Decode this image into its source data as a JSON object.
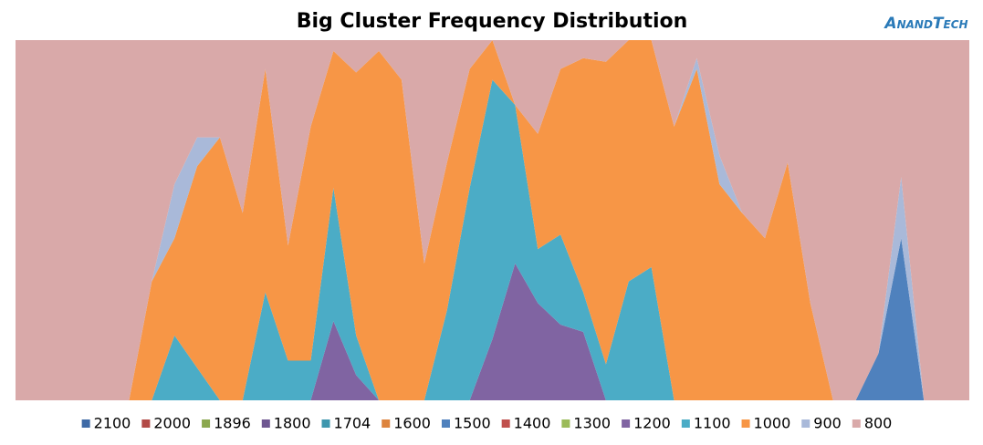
{
  "chart_data": {
    "type": "stacked_area_percent",
    "title": "Big Cluster Frequency Distribution",
    "logo": "AnandTech",
    "ylim": [
      0,
      100
    ],
    "categories": [
      null,
      null,
      null,
      null,
      null,
      null,
      null,
      null,
      null,
      null,
      null,
      null,
      null,
      null,
      null,
      null,
      null,
      null,
      null,
      null,
      null,
      null,
      null,
      null,
      null,
      null,
      null,
      null,
      null,
      null,
      null,
      null,
      null,
      null,
      null,
      null,
      null,
      null,
      null,
      null,
      null,
      null,
      null
    ],
    "series": [
      {
        "name": "2100",
        "color": "#3f6aa6",
        "values": [
          0,
          0,
          0,
          0,
          0,
          0,
          0,
          0,
          0,
          0,
          0,
          0,
          0,
          0,
          0,
          0,
          0,
          0,
          0,
          0,
          0,
          0,
          0,
          0,
          0,
          0,
          0,
          0,
          0,
          0,
          0,
          0,
          0,
          0,
          0,
          0,
          0,
          0,
          0,
          0,
          0,
          0,
          0
        ]
      },
      {
        "name": "2000",
        "color": "#b24a47",
        "values": [
          0,
          0,
          0,
          0,
          0,
          0,
          0,
          0,
          0,
          0,
          0,
          0,
          0,
          0,
          0,
          0,
          0,
          0,
          0,
          0,
          0,
          0,
          0,
          0,
          0,
          0,
          0,
          0,
          0,
          0,
          0,
          0,
          0,
          0,
          0,
          0,
          0,
          0,
          0,
          0,
          0,
          0,
          0
        ]
      },
      {
        "name": "1896",
        "color": "#8ba84f",
        "values": [
          0,
          0,
          0,
          0,
          0,
          0,
          0,
          0,
          0,
          0,
          0,
          0,
          0,
          0,
          0,
          0,
          0,
          0,
          0,
          0,
          0,
          0,
          0,
          0,
          0,
          0,
          0,
          0,
          0,
          0,
          0,
          0,
          0,
          0,
          0,
          0,
          0,
          0,
          0,
          0,
          0,
          0,
          0
        ]
      },
      {
        "name": "1800",
        "color": "#6e5690",
        "values": [
          0,
          0,
          0,
          0,
          0,
          0,
          0,
          0,
          0,
          0,
          0,
          0,
          0,
          0,
          0,
          0,
          0,
          0,
          0,
          0,
          0,
          0,
          0,
          0,
          0,
          0,
          0,
          0,
          0,
          0,
          0,
          0,
          0,
          0,
          0,
          0,
          0,
          0,
          0,
          0,
          0,
          0,
          0
        ]
      },
      {
        "name": "1704",
        "color": "#3e97ae",
        "values": [
          0,
          0,
          0,
          0,
          0,
          0,
          0,
          0,
          0,
          0,
          0,
          0,
          0,
          0,
          0,
          0,
          0,
          0,
          0,
          0,
          0,
          0,
          0,
          0,
          0,
          0,
          0,
          0,
          0,
          0,
          0,
          0,
          0,
          0,
          0,
          0,
          0,
          0,
          0,
          0,
          0,
          0,
          0
        ]
      },
      {
        "name": "1600",
        "color": "#dd843e",
        "values": [
          0,
          0,
          0,
          0,
          0,
          0,
          0,
          0,
          0,
          0,
          0,
          0,
          0,
          0,
          0,
          0,
          0,
          0,
          0,
          0,
          0,
          0,
          0,
          0,
          0,
          0,
          0,
          0,
          0,
          0,
          0,
          0,
          0,
          0,
          0,
          0,
          0,
          0,
          0,
          0,
          0,
          0,
          0
        ]
      },
      {
        "name": "1500",
        "color": "#4f81bd",
        "values": [
          0,
          0,
          0,
          0,
          0,
          0,
          0,
          0,
          0,
          0,
          0,
          0,
          0,
          0,
          0,
          0,
          0,
          0,
          0,
          0,
          0,
          0,
          0,
          0,
          0,
          0,
          0,
          0,
          0,
          0,
          0,
          0,
          0,
          0,
          0,
          0,
          0,
          0,
          13,
          45,
          0,
          0,
          0
        ]
      },
      {
        "name": "1400",
        "color": "#c0504d",
        "values": [
          0,
          0,
          0,
          0,
          0,
          0,
          0,
          0,
          0,
          0,
          0,
          0,
          0,
          0,
          0,
          0,
          0,
          0,
          0,
          0,
          0,
          0,
          0,
          0,
          0,
          0,
          0,
          0,
          0,
          0,
          0,
          0,
          0,
          0,
          0,
          0,
          0,
          0,
          0,
          0,
          0,
          0,
          0
        ]
      },
      {
        "name": "1300",
        "color": "#9bbb59",
        "values": [
          0,
          0,
          0,
          0,
          0,
          0,
          0,
          0,
          0,
          0,
          0,
          0,
          0,
          0,
          0,
          0,
          0,
          0,
          0,
          0,
          0,
          0,
          0,
          0,
          0,
          0,
          0,
          0,
          0,
          0,
          0,
          0,
          0,
          0,
          0,
          0,
          0,
          0,
          0,
          0,
          0,
          0,
          0
        ]
      },
      {
        "name": "1200",
        "color": "#8064a2",
        "values": [
          0,
          0,
          0,
          0,
          0,
          0,
          0,
          0,
          0,
          0,
          0,
          0,
          0,
          0,
          22,
          7,
          0,
          0,
          0,
          0,
          0,
          17,
          38,
          27,
          21,
          19,
          0,
          0,
          0,
          0,
          0,
          0,
          0,
          0,
          0,
          0,
          0,
          0,
          0,
          0,
          0,
          0,
          0
        ]
      },
      {
        "name": "1100",
        "color": "#4bacc6",
        "values": [
          0,
          0,
          0,
          0,
          0,
          0,
          0,
          18,
          9,
          0,
          0,
          30,
          11,
          11,
          37,
          11,
          0,
          0,
          0,
          25,
          59,
          72,
          44,
          15,
          25,
          11,
          10,
          33,
          37,
          0,
          0,
          0,
          0,
          0,
          0,
          0,
          0,
          0,
          0,
          0,
          0,
          0,
          0
        ]
      },
      {
        "name": "1000",
        "color": "#f79646",
        "values": [
          0,
          0,
          0,
          0,
          0,
          0,
          33,
          27,
          56,
          73,
          52,
          62,
          32,
          65,
          38,
          73,
          97,
          89,
          38,
          41,
          33,
          11,
          0,
          32,
          46,
          65,
          84,
          67,
          63,
          76,
          92,
          60,
          52,
          45,
          66,
          27,
          0,
          0,
          0,
          0,
          0,
          0,
          0
        ]
      },
      {
        "name": "900",
        "color": "#a9b9d9",
        "values": [
          0,
          0,
          0,
          0,
          0,
          0,
          0,
          15,
          8,
          0,
          0,
          0,
          0,
          0,
          0,
          0,
          0,
          0,
          0,
          0,
          0,
          0,
          0,
          0,
          0,
          0,
          0,
          0,
          0,
          0,
          3,
          8,
          0,
          0,
          0,
          0,
          0,
          0,
          0,
          17,
          0,
          0,
          0
        ]
      },
      {
        "name": "800",
        "color": "#d9a9a9",
        "values": [
          100,
          100,
          100,
          100,
          100,
          100,
          67,
          40,
          27,
          27,
          48,
          8,
          57,
          24,
          3,
          9,
          3,
          11,
          62,
          34,
          8,
          0,
          18,
          26,
          8,
          5,
          6,
          0,
          0,
          24,
          5,
          32,
          48,
          55,
          34,
          73,
          100,
          100,
          87,
          38,
          100,
          100,
          100
        ]
      }
    ]
  }
}
